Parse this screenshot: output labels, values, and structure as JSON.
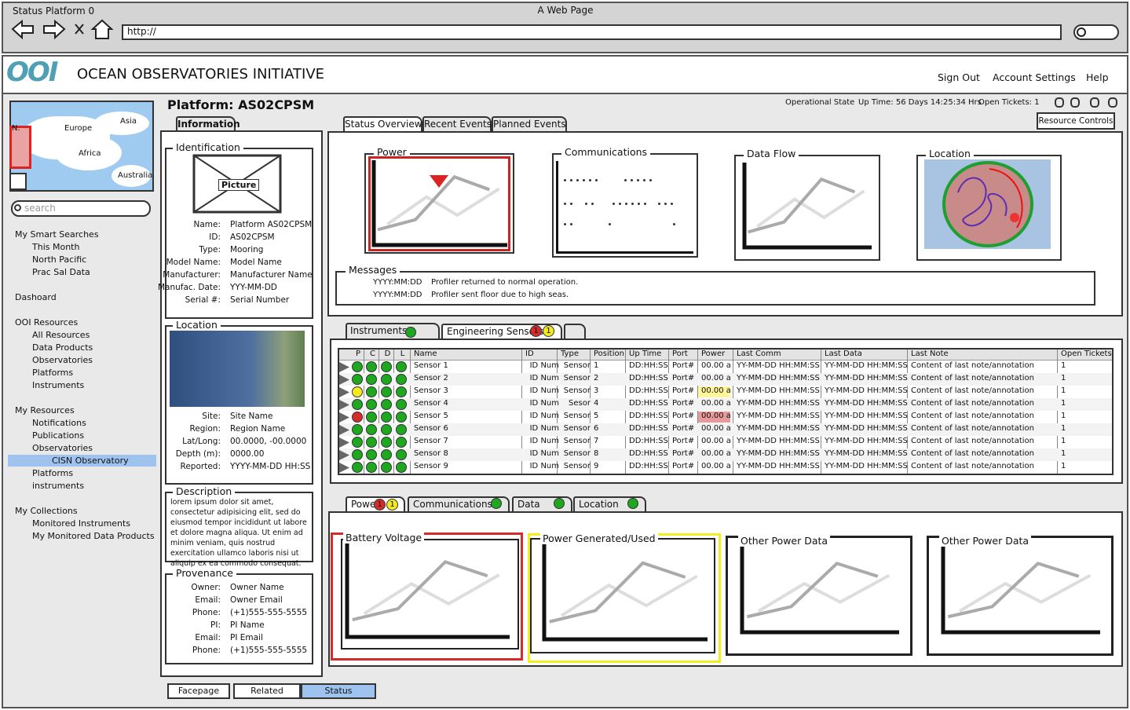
{
  "browser": {
    "window_title": "Status Platform 0",
    "page_title": "A Web Page",
    "url": "http://"
  },
  "header": {
    "logo": "OOI",
    "title": "OCEAN OBSERVATORIES INITIATIVE",
    "links": [
      "Sign Out",
      "Account Settings",
      "Help"
    ]
  },
  "map": {
    "labels": [
      "N.",
      "Europe",
      "Asia",
      "Africa",
      "Australia"
    ]
  },
  "search": {
    "placeholder": "search"
  },
  "nav": [
    {
      "heading": "My Smart Searches",
      "items": [
        "This Month",
        "North Pacific",
        "Prac Sal Data"
      ]
    },
    {
      "heading": "Dashoard",
      "items": []
    },
    {
      "heading": "OOI Resources",
      "items": [
        "All Resources",
        "Data Products",
        "Observatories",
        "Platforms",
        "Instruments"
      ]
    },
    {
      "heading": "My Resources",
      "items": [
        "Notifications",
        "Publications",
        "Observatories",
        "CISN Observatory",
        "Platforms",
        "instruments"
      ],
      "selected": "CISN Observatory"
    },
    {
      "heading": "My Collections",
      "items": [
        "Monitored Instruments",
        "My Monitored Data Products"
      ]
    }
  ],
  "platform": {
    "title": "Platform: AS02CPSM",
    "status": [
      "Operational State",
      "Up Time: 56 Days 14:25:34 Hrs",
      "Open Tickets: 1"
    ],
    "resource_button": "Resource Controls"
  },
  "info_tab": "Information",
  "identification": {
    "title": "Identification",
    "picture": "Picture",
    "fields": [
      {
        "label": "Name:",
        "value": "Platform AS02CPSM"
      },
      {
        "label": "ID:",
        "value": "AS02CPSM"
      },
      {
        "label": "Type:",
        "value": "Mooring"
      },
      {
        "label": "Model Name:",
        "value": "Model Name"
      },
      {
        "label": "Manufacturer:",
        "value": "Manufacturer Name"
      },
      {
        "label": "Manufac. Date:",
        "value": "YYY-MM-DD"
      },
      {
        "label": "Serial #:",
        "value": "Serial Number"
      }
    ]
  },
  "location": {
    "title": "Location",
    "fields": [
      {
        "label": "Site:",
        "value": "Site Name"
      },
      {
        "label": "Region:",
        "value": "Region Name"
      },
      {
        "label": "Lat/Long:",
        "value": "00.0000, -00.0000"
      },
      {
        "label": "Depth (m):",
        "value": "0000.00"
      },
      {
        "label": "Reported:",
        "value": "YYYY-MM-DD HH:SS"
      }
    ]
  },
  "description": {
    "title": "Description",
    "text": "lorem ipsum dolor sit amet, consectetur adipisicing elit, sed do eiusmod tempor incididunt ut labore et dolore magna aliqua. Ut enim ad minim veniam, quis nostrud exercitation ullamco laboris nisi ut aliquip ex ea commodo consequat."
  },
  "provenance": {
    "title": "Provenance",
    "fields": [
      {
        "label": "Owner:",
        "value": "Owner Name"
      },
      {
        "label": "Email:",
        "value": "Owner Email"
      },
      {
        "label": "Phone:",
        "value": "(+1)555-555-5555"
      },
      {
        "label": "PI:",
        "value": "PI Name"
      },
      {
        "label": "Email:",
        "value": "PI Email"
      },
      {
        "label": "Phone:",
        "value": "(+1)555-555-5555"
      }
    ]
  },
  "bottom_tabs": [
    "Facepage",
    "Related",
    "Status"
  ],
  "status_tabs": [
    "Status Overview",
    "Recent Events",
    "Planned Events"
  ],
  "overview_panels": [
    "Power",
    "Communications",
    "Data Flow",
    "Location"
  ],
  "messages": {
    "title": "Messages",
    "rows": [
      {
        "date": "YYYY:MM:DD",
        "text": "Profiler returned to normal operation."
      },
      {
        "date": "YYYY:MM:DD",
        "text": "Profiler sent floor due to high seas."
      }
    ]
  },
  "sensor_tabs": [
    {
      "label": "Instruments"
    },
    {
      "label": "Engineering Sensors",
      "badges": [
        {
          "label": "1",
          "color": "#d62b2b"
        },
        {
          "label": "1",
          "color": "#f2ea1e"
        }
      ]
    }
  ],
  "table": {
    "headers": [
      "P",
      "C",
      "D",
      "L",
      "Name",
      "ID",
      "Type",
      "Position",
      "Up Time",
      "Port",
      "Power",
      "Last Comm",
      "Last Data",
      "Last Note",
      "Open Tickets"
    ],
    "rows": [
      {
        "lights": [
          "#1fa81f",
          "#1fa81f",
          "#1fa81f",
          "#1fa81f"
        ],
        "name": "Sensor 1",
        "id": "ID Num",
        "type": "Sensor",
        "position": 1,
        "uptime": "DD:HH:SS",
        "port": "Port#",
        "power": "00.00 a",
        "last_comm": "YY-MM-DD HH:MM:SS",
        "last_data": "YY-MM-DD HH:MM:SS",
        "last_note": "Content of last note/annotation",
        "open_tickets": 1
      },
      {
        "lights": [
          "#1fa81f",
          "#1fa81f",
          "#1fa81f",
          "#1fa81f"
        ],
        "name": "Sensor 2",
        "id": "ID Num",
        "type": "Sensor",
        "position": 2,
        "uptime": "DD:HH:SS",
        "port": "Port#",
        "power": "00.00 a",
        "last_comm": "YY-MM-DD HH:MM:SS",
        "last_data": "YY-MM-DD HH:MM:SS",
        "last_note": "Content of last note/annotation",
        "open_tickets": 1
      },
      {
        "lights": [
          "#f2ea1e",
          "#1fa81f",
          "#1fa81f",
          "#1fa81f"
        ],
        "name": "Sensor 3",
        "id": "ID Num",
        "type": "Sensor",
        "position": 3,
        "uptime": "DD:HH:SS",
        "port": "Port#",
        "power": "00.00 a",
        "power_highlight": "#fff59a",
        "last_comm": "YY-MM-DD HH:MM:SS",
        "last_data": "YY-MM-DD HH:MM:SS",
        "last_note": "Content of last note/annotation",
        "open_tickets": 1
      },
      {
        "lights": [
          "#1fa81f",
          "#1fa81f",
          "#1fa81f",
          "#1fa81f"
        ],
        "name": "Sensor 4",
        "id": "ID Num",
        "type": "Sesor",
        "position": 4,
        "uptime": "DD:HH:SS",
        "port": "Port#",
        "power": "00.00 a",
        "last_comm": "YY-MM-DD HH:MM:SS",
        "last_data": "YY-MM-DD HH:MM:SS",
        "last_note": "Content of last note/annotation",
        "open_tickets": 1
      },
      {
        "lights": [
          "#d62b2b",
          "#1fa81f",
          "#1fa81f",
          "#1fa81f"
        ],
        "name": "Sensor 5",
        "id": "ID Num",
        "type": "Sensor",
        "position": 5,
        "uptime": "DD:HH:SS",
        "port": "Port#",
        "power": "00.00 a",
        "power_highlight": "#e89a9a",
        "last_comm": "YY-MM-DD HH:MM:SS",
        "last_data": "YY-MM-DD HH:MM:SS",
        "last_note": "Content of last note/annotation",
        "open_tickets": 1
      },
      {
        "lights": [
          "#1fa81f",
          "#1fa81f",
          "#1fa81f",
          "#1fa81f"
        ],
        "name": "Sensor 6",
        "id": "ID Num",
        "type": "Sensor",
        "position": 6,
        "uptime": "DD:HH:SS",
        "port": "Port#",
        "power": "00.00 a",
        "last_comm": "YY-MM-DD HH:MM:SS",
        "last_data": "YY-MM-DD HH:MM:SS",
        "last_note": "Content of last note/annotation",
        "open_tickets": 1
      },
      {
        "lights": [
          "#1fa81f",
          "#1fa81f",
          "#1fa81f",
          "#1fa81f"
        ],
        "name": "Sensor 7",
        "id": "ID Num",
        "type": "Sensor",
        "position": 7,
        "uptime": "DD:HH:SS",
        "port": "Port#",
        "power": "00.00 a",
        "last_comm": "YY-MM-DD HH:MM:SS",
        "last_data": "YY-MM-DD HH:MM:SS",
        "last_note": "Content of last note/annotation",
        "open_tickets": 1
      },
      {
        "lights": [
          "#1fa81f",
          "#1fa81f",
          "#1fa81f",
          "#1fa81f"
        ],
        "name": "Sensor 8",
        "id": "ID Num",
        "type": "Sensor",
        "position": 8,
        "uptime": "DD:HH:SS",
        "port": "Port#",
        "power": "00.00 a",
        "last_comm": "YY-MM-DD HH:MM:SS",
        "last_data": "YY-MM-DD HH:MM:SS",
        "last_note": "Content of last note/annotation",
        "open_tickets": 1
      },
      {
        "lights": [
          "#1fa81f",
          "#1fa81f",
          "#1fa81f",
          "#1fa81f"
        ],
        "name": "Sensor 9",
        "id": "ID Num",
        "type": "Sensor",
        "position": 9,
        "uptime": "DD:HH:SS",
        "port": "Port#",
        "power": "00.00 a",
        "last_comm": "YY-MM-DD HH:MM:SS",
        "last_data": "YY-MM-DD HH:MM:SS",
        "last_note": "Content of last note/annotation",
        "open_tickets": 1
      }
    ]
  },
  "detail_tabs": [
    {
      "label": "Power",
      "badges": [
        {
          "label": "1",
          "color": "#d62b2b"
        },
        {
          "label": "1",
          "color": "#f2ea1e"
        }
      ]
    },
    {
      "label": "Communications",
      "light": "#1fa81f"
    },
    {
      "label": "Data",
      "light": "#1fa81f"
    },
    {
      "label": "Location",
      "light": "#1fa81f"
    }
  ],
  "detail_panels": [
    {
      "title": "Battery Voltage",
      "border": "#d62b2b"
    },
    {
      "title": "Power Generated/Used",
      "border": "#f2ee20"
    },
    {
      "title": "Other Power Data",
      "border": "#222"
    },
    {
      "title": "Other Power Data",
      "border": "#222"
    }
  ]
}
